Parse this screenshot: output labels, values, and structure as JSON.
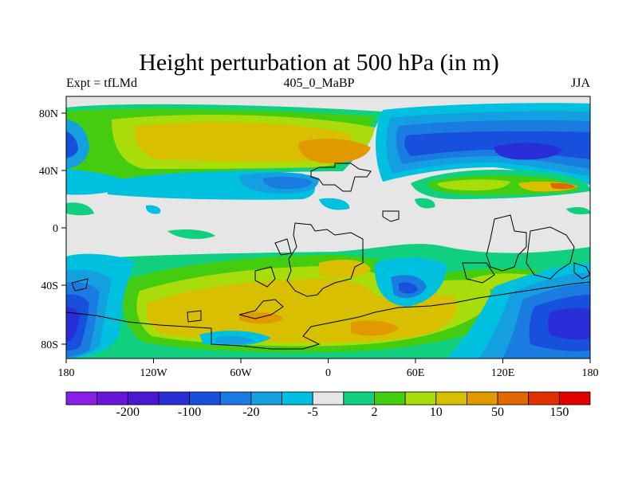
{
  "title": "Height perturbation at 500 hPa (in m)",
  "left_label": "Expt = tfLMd",
  "center_label": "405_0_MaBP",
  "right_label": "JJA",
  "map": {
    "lon_ticks": [
      "180",
      "120W",
      "60W",
      "0",
      "60E",
      "120E",
      "180"
    ],
    "lat_ticks": [
      "80N",
      "40N",
      "0",
      "40S",
      "80S"
    ]
  },
  "colorbar": {
    "colors": [
      "#8a1ee8",
      "#6a16d8",
      "#4a18d2",
      "#2a2ed8",
      "#1650dc",
      "#1a7ce0",
      "#14a0e0",
      "#00c0e0",
      "#e6e6e6",
      "#10d080",
      "#44cc10",
      "#a8dc0a",
      "#d8c000",
      "#e09a00",
      "#e06800",
      "#e03000",
      "#e00000"
    ],
    "labels": [
      "-200",
      "-100",
      "-20",
      "-5",
      "2",
      "10",
      "50",
      "150"
    ]
  }
}
